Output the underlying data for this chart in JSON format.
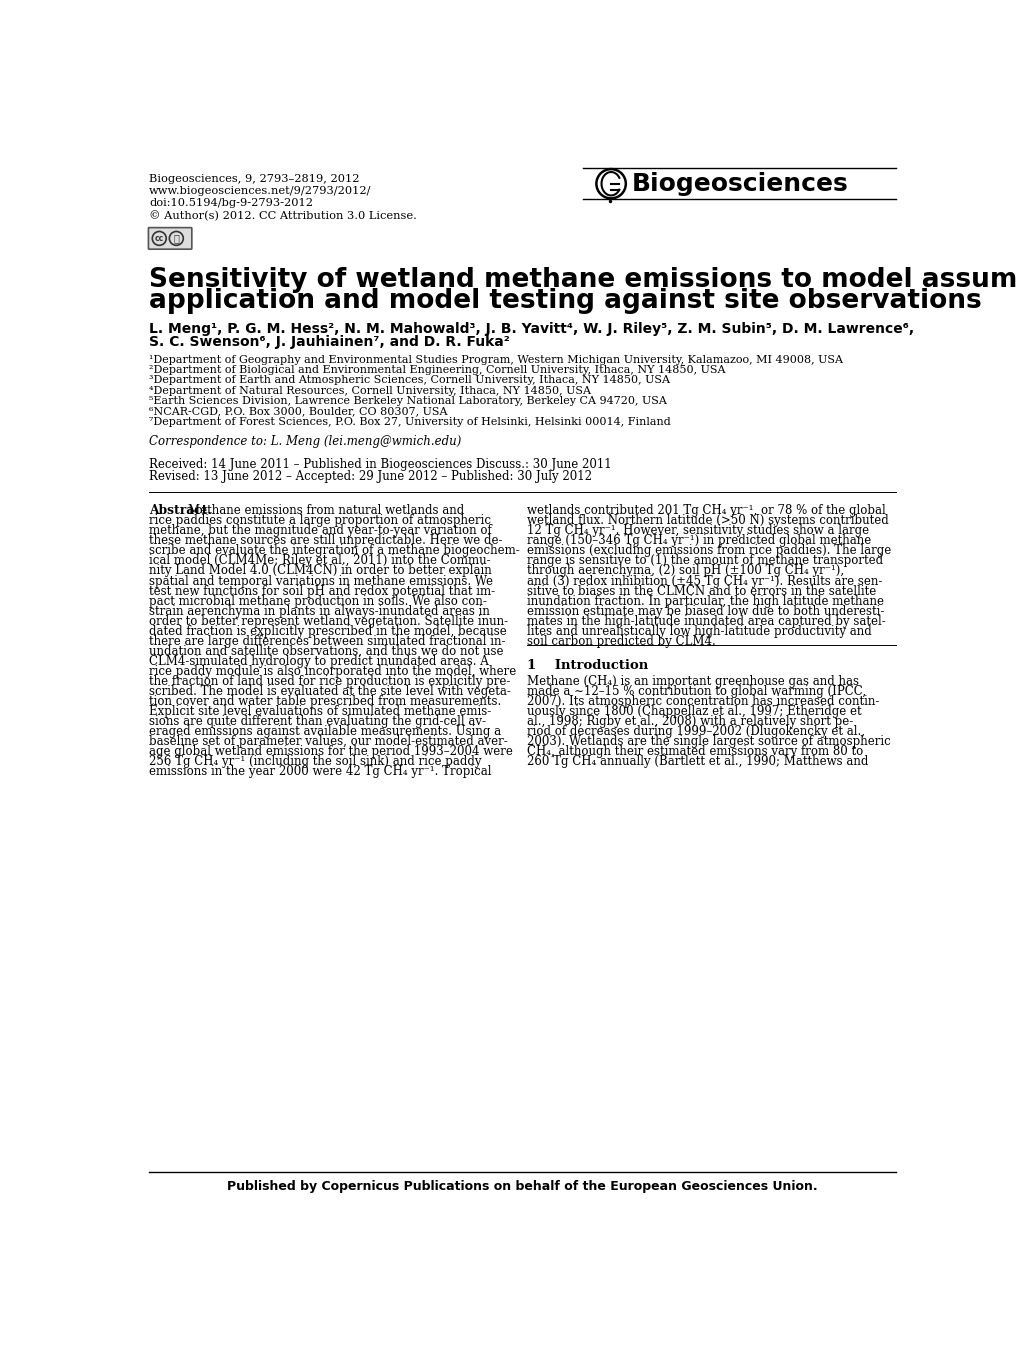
{
  "journal_info_lines": [
    "Biogeosciences, 9, 2793–2819, 2012",
    "www.biogeosciences.net/9/2793/2012/",
    "doi:10.5194/bg-9-2793-2012",
    "© Author(s) 2012. CC Attribution 3.0 License."
  ],
  "journal_name": "Biogeosciences",
  "title_line1": "Sensitivity of wetland methane emissions to model assumptions:",
  "title_line2": "application and model testing against site observations",
  "authors_line1": "L. Meng¹, P. G. M. Hess², N. M. Mahowald³, J. B. Yavitt⁴, W. J. Riley⁵, Z. M. Subin⁵, D. M. Lawrence⁶,",
  "authors_line2": "S. C. Swenson⁶, J. Jauhiainen⁷, and D. R. Fuka²",
  "affiliations": [
    "¹Department of Geography and Environmental Studies Program, Western Michigan University, Kalamazoo, MI 49008, USA",
    "²Department of Biological and Environmental Engineering, Cornell University, Ithaca, NY 14850, USA",
    "³Department of Earth and Atmospheric Sciences, Cornell University, Ithaca, NY 14850, USA",
    "⁴Department of Natural Resources, Cornell University, Ithaca, NY 14850, USA",
    "⁵Earth Sciences Division, Lawrence Berkeley National Laboratory, Berkeley CA 94720, USA",
    "⁶NCAR-CGD, P.O. Box 3000, Boulder, CO 80307, USA",
    "⁷Department of Forest Sciences, P.O. Box 27, University of Helsinki, Helsinki 00014, Finland"
  ],
  "correspondence": "Correspondence to: L. Meng (lei.meng@wmich.edu)",
  "correspondence_prefix": "Correspondence to:",
  "received": "Received: 14 June 2011 – Published in Biogeosciences Discuss.: 30 June 2011",
  "revised": "Revised: 13 June 2012 – Accepted: 29 June 2012 – Published: 30 July 2012",
  "abstract_label": "Abstract.",
  "abstract_col1_lines": [
    "Methane emissions from natural wetlands and",
    "rice paddies constitute a large proportion of atmospheric",
    "methane, but the magnitude and year-to-year variation of",
    "these methane sources are still unpredictable. Here we de-",
    "scribe and evaluate the integration of a methane biogeochem-",
    "ical model (CLM4Me; Riley et al., 2011) into the Commu-",
    "nity Land Model 4.0 (CLM4CN) in order to better explain",
    "spatial and temporal variations in methane emissions. We",
    "test new functions for soil pH and redox potential that im-",
    "pact microbial methane production in soils. We also con-",
    "strain aerenchyma in plants in always-inundated areas in",
    "order to better represent wetland vegetation. Satellite inun-",
    "dated fraction is explicitly prescribed in the model, because",
    "there are large differences between simulated fractional in-",
    "undation and satellite observations, and thus we do not use",
    "CLM4-simulated hydrology to predict inundated areas. A",
    "rice paddy module is also incorporated into the model, where",
    "the fraction of land used for rice production is explicitly pre-",
    "scribed. The model is evaluated at the site level with vegeta-",
    "tion cover and water table prescribed from measurements.",
    "Explicit site level evaluations of simulated methane emis-",
    "sions are quite different than evaluating the grid-cell av-",
    "eraged emissions against available measurements. Using a",
    "baseline set of parameter values, our model-estimated aver-",
    "age global wetland emissions for the period 1993–2004 were",
    "256 Tg CH₄ yr⁻¹ (including the soil sink) and rice paddy",
    "emissions in the year 2000 were 42 Tg CH₄ yr⁻¹. Tropical"
  ],
  "abstract_col2_lines": [
    "wetlands contributed 201 Tg CH₄ yr⁻¹, or 78 % of the global",
    "wetland flux. Northern latitude (>50 N) systems contributed",
    "12 Tg CH₄ yr⁻¹. However, sensitivity studies show a large",
    "range (150–346 Tg CH₄ yr⁻¹) in predicted global methane",
    "emissions (excluding emissions from rice paddies). The large",
    "range is sensitive to (1) the amount of methane transported",
    "through aerenchyma, (2) soil pH (±100 Tg CH₄ yr⁻¹),",
    "and (3) redox inhibition (±45 Tg CH₄ yr⁻¹). Results are sen-",
    "sitive to biases in the CLMCN and to errors in the satellite",
    "inundation fraction. In particular, the high latitude methane",
    "emission estimate may be biased low due to both underesti-",
    "mates in the high-latitude inundated area captured by satel-",
    "lites and unrealistically low high-latitude productivity and",
    "soil carbon predicted by CLM4."
  ],
  "intro_header": "1    Introduction",
  "intro_col2_lines": [
    "Methane (CH₄) is an important greenhouse gas and has",
    "made a ∼12–15 % contribution to global warming (IPCC,",
    "2007). Its atmospheric concentration has increased contin-",
    "uously since 1800 (Chappellaz et al., 1997; Etheridge et",
    "al., 1998; Rigby et al., 2008) with a relatively short pe-",
    "riod of decreases during 1999–2002 (Dlugokencky et al.,",
    "2003). Wetlands are the single largest source of atmospheric",
    "CH₄, although their estimated emissions vary from 80 to",
    "260 Tg CH₄ annually (Bartlett et al., 1990; Matthews and"
  ],
  "footer": "Published by Copernicus Publications on behalf of the European Geosciences Union.",
  "bg_color": "#ffffff",
  "text_color": "#000000"
}
